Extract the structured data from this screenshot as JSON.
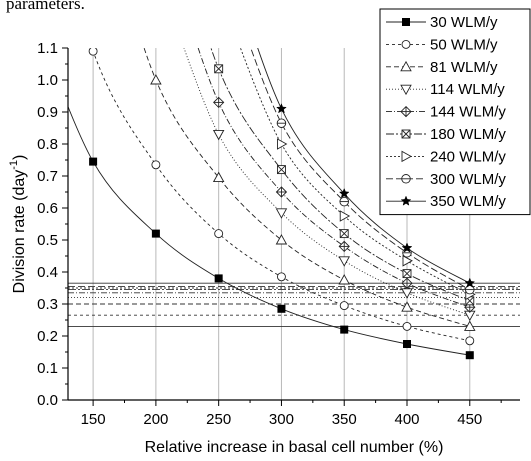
{
  "page": {
    "top_text": "parameters."
  },
  "chart_data": {
    "type": "line",
    "title": "",
    "xlabel": "Relative increase in basal cell number (%)",
    "ylabel_main": "Division rate (day",
    "ylabel_sup": "-1",
    "ylabel_close": ")",
    "xlim": [
      130,
      490
    ],
    "ylim": [
      0.0,
      1.1
    ],
    "xticks": [
      150,
      200,
      250,
      300,
      350,
      400,
      450
    ],
    "yticks": [
      0.0,
      0.1,
      0.2,
      0.3,
      0.4,
      0.5,
      0.6,
      0.7,
      0.8,
      0.9,
      1.0,
      1.1
    ],
    "xtick_labels": [
      "150",
      "200",
      "250",
      "300",
      "350",
      "400",
      "450"
    ],
    "ytick_labels": [
      "0.0",
      "0.1",
      "0.2",
      "0.3",
      "0.4",
      "0.5",
      "0.6",
      "0.7",
      "0.8",
      "0.9",
      "1.0",
      "1.1"
    ],
    "vertical_gridlines": [
      150,
      200,
      250,
      300,
      350,
      400,
      450
    ],
    "legend_position": "top-right",
    "series": [
      {
        "name": "30 WLM/y",
        "marker": "square-filled",
        "dash": "",
        "x": [
          150,
          200,
          250,
          300,
          350,
          400,
          450
        ],
        "y": [
          0.745,
          0.52,
          0.38,
          0.285,
          0.22,
          0.175,
          0.14
        ],
        "asymptote": 0.23
      },
      {
        "name": "50 WLM/y",
        "marker": "circle",
        "dash": "3,3",
        "x": [
          150,
          200,
          250,
          300,
          350,
          400,
          450
        ],
        "y": [
          1.09,
          0.735,
          0.52,
          0.385,
          0.295,
          0.23,
          0.185
        ],
        "asymptote": 0.265
      },
      {
        "name": "81 WLM/y",
        "marker": "triangle-up",
        "dash": "5,3",
        "x": [
          200,
          250,
          300,
          350,
          400,
          450
        ],
        "y": [
          1.0,
          0.695,
          0.5,
          0.375,
          0.29,
          0.23
        ],
        "asymptote": 0.3
      },
      {
        "name": "114 WLM/y",
        "marker": "triangle-down",
        "dash": "1,2",
        "x": [
          250,
          300,
          350,
          400,
          450
        ],
        "y": [
          0.83,
          0.585,
          0.435,
          0.335,
          0.265
        ],
        "asymptote": 0.32
      },
      {
        "name": "144 WLM/y",
        "marker": "diamond-cross",
        "dash": "6,2,1,2",
        "x": [
          250,
          300,
          350,
          400,
          450
        ],
        "y": [
          0.93,
          0.65,
          0.48,
          0.365,
          0.29
        ],
        "asymptote": 0.335
      },
      {
        "name": "180 WLM/y",
        "marker": "x-box",
        "dash": "8,2,2,2",
        "x": [
          250,
          300,
          350,
          400,
          450
        ],
        "y": [
          1.035,
          0.72,
          0.52,
          0.395,
          0.31
        ],
        "asymptote": 0.345
      },
      {
        "name": "240 WLM/y",
        "marker": "triangle-right",
        "dash": "2,2",
        "x": [
          300,
          350,
          400,
          450
        ],
        "y": [
          0.8,
          0.575,
          0.435,
          0.33
        ],
        "asymptote": 0.35
      },
      {
        "name": "300 WLM/y",
        "marker": "circle-bar",
        "dash": "7,3",
        "x": [
          300,
          350,
          400,
          450
        ],
        "y": [
          0.865,
          0.62,
          0.46,
          0.345
        ],
        "asymptote": 0.355
      },
      {
        "name": "350 WLM/y",
        "marker": "star",
        "dash": "",
        "x": [
          300,
          350,
          400,
          450
        ],
        "y": [
          0.91,
          0.645,
          0.475,
          0.365
        ],
        "asymptote": 0.365
      }
    ]
  }
}
